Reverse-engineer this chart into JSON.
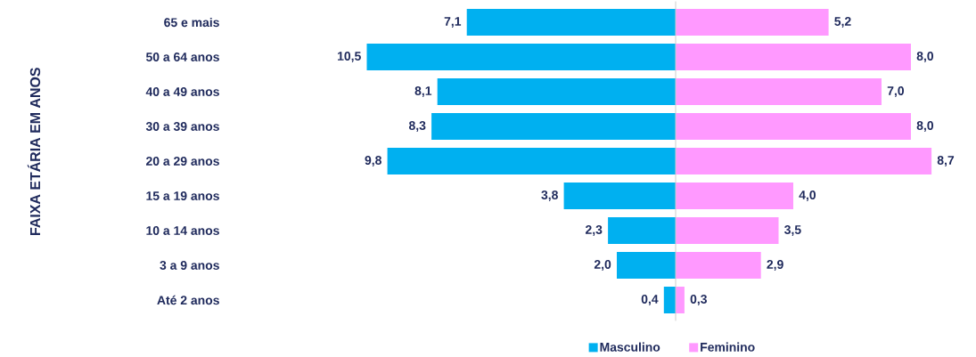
{
  "chart_data": [
    {
      "type": "bar",
      "orientation": "horizontal",
      "ylabel": "FAIXA ETÁRIA EM ANOS",
      "categories": [
        "65 e mais",
        "50 a 64 anos",
        "40 a 49 anos",
        "30 a 39 anos",
        "20 a 29 anos",
        "15 a 19 anos",
        "10 a 14 anos",
        "3 a 9 anos",
        "Até 2 anos"
      ],
      "xlim": [
        10.5,
        0
      ],
      "tick_labels": "y",
      "legend": "bottom",
      "series": [
        {
          "name": "Masculino",
          "color": "#00b0f0",
          "values": [
            7.1,
            10.5,
            8.1,
            8.3,
            9.8,
            3.8,
            2.3,
            2.0,
            0.4
          ],
          "value_labels": [
            "7,1",
            "10,5",
            "8,1",
            "8,3",
            "9,8",
            "3,8",
            "2,3",
            "2,0",
            "0,4"
          ]
        }
      ]
    },
    {
      "type": "bar",
      "orientation": "horizontal",
      "categories": [
        null,
        null,
        null,
        null,
        null,
        null,
        null,
        null,
        null
      ],
      "xlim": [
        0,
        8.7
      ],
      "tick_labels": false,
      "legend": "bottom",
      "series": [
        {
          "name": "Feminino",
          "color": "#ff99ff",
          "values": [
            5.2,
            8.0,
            7.0,
            8.0,
            8.7,
            4.0,
            3.5,
            2.9,
            0.3
          ],
          "value_labels": [
            "5,2",
            "8,0",
            "7,0",
            "8,0",
            "8,7",
            "4,0",
            "3,5",
            "2,9",
            "0,3"
          ]
        }
      ]
    }
  ]
}
